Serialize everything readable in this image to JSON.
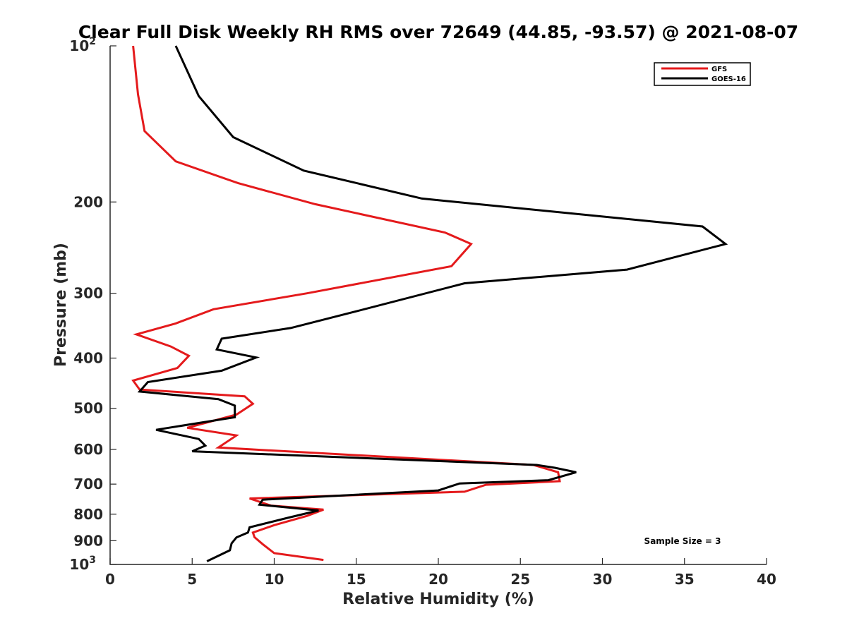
{
  "chart_data": {
    "type": "line",
    "title": "Clear Full Disk Weekly RH RMS over 72649 (44.85, -93.57) @ 2021-08-07",
    "xlabel": "Relative Humidity (%)",
    "ylabel": "Pressure (mb)",
    "xlim": [
      0,
      40
    ],
    "ylim": [
      100,
      1000
    ],
    "y_scale": "log",
    "y_reversed": true,
    "grid": false,
    "legend_position": "top-right",
    "x_ticks": [
      {
        "value": 0,
        "label": "0"
      },
      {
        "value": 5,
        "label": "5"
      },
      {
        "value": 10,
        "label": "10"
      },
      {
        "value": 15,
        "label": "15"
      },
      {
        "value": 20,
        "label": "20"
      },
      {
        "value": 25,
        "label": "25"
      },
      {
        "value": 30,
        "label": "30"
      },
      {
        "value": 35,
        "label": "35"
      },
      {
        "value": 40,
        "label": "40"
      }
    ],
    "y_ticks": [
      {
        "value": 100,
        "label": "10",
        "exp": "2"
      },
      {
        "value": 200,
        "label": "200"
      },
      {
        "value": 300,
        "label": "300"
      },
      {
        "value": 400,
        "label": "400"
      },
      {
        "value": 500,
        "label": "500"
      },
      {
        "value": 600,
        "label": "600"
      },
      {
        "value": 700,
        "label": "700"
      },
      {
        "value": 800,
        "label": "800"
      },
      {
        "value": 900,
        "label": "900"
      },
      {
        "value": 1000,
        "label": "10",
        "exp": "3"
      }
    ],
    "series": [
      {
        "name": "GFS",
        "color": "#e41a1c",
        "x": [
          1.4,
          1.7,
          2.1,
          4.0,
          7.8,
          12.5,
          20.4,
          22.0,
          20.8,
          12.0,
          6.3,
          4.0,
          1.6,
          3.7,
          4.8,
          4.1,
          1.4,
          1.8,
          8.2,
          8.7,
          7.7,
          4.7,
          7.7,
          6.6,
          25.8,
          27.3,
          27.4,
          22.9,
          21.6,
          8.5,
          9.8,
          13.0,
          12.0,
          10.0,
          8.7,
          8.8,
          9.3,
          10.0,
          13.0
        ],
        "y": [
          100,
          124,
          146,
          167,
          184,
          202,
          229,
          241,
          266,
          300,
          322,
          343,
          360,
          380,
          396,
          418,
          442,
          460,
          474,
          490,
          514,
          545,
          564,
          595,
          643,
          664,
          691,
          702,
          724,
          746,
          770,
          784,
          806,
          840,
          868,
          886,
          914,
          951,
          980
        ]
      },
      {
        "name": "GOES-16",
        "color": "#000000",
        "x": [
          4.0,
          5.4,
          7.5,
          11.8,
          19.0,
          36.1,
          37.5,
          31.5,
          21.6,
          15.0,
          11.0,
          6.8,
          6.5,
          8.9,
          6.8,
          2.3,
          1.8,
          6.6,
          7.6,
          7.6,
          2.8,
          5.4,
          5.8,
          5.0,
          26.0,
          27.1,
          28.4,
          26.7,
          21.3,
          20.0,
          9.3,
          9.1,
          12.7,
          10.9,
          8.5,
          8.4,
          7.7,
          7.4,
          7.3,
          5.9
        ],
        "y": [
          100,
          125,
          150,
          174,
          197,
          223,
          241,
          270,
          287,
          325,
          350,
          367,
          385,
          399,
          423,
          445,
          464,
          480,
          494,
          520,
          550,
          573,
          590,
          605,
          643,
          651,
          664,
          688,
          698,
          720,
          750,
          767,
          787,
          812,
          848,
          868,
          887,
          911,
          939,
          986
        ]
      }
    ],
    "annotation": "Sample Size = 3"
  }
}
